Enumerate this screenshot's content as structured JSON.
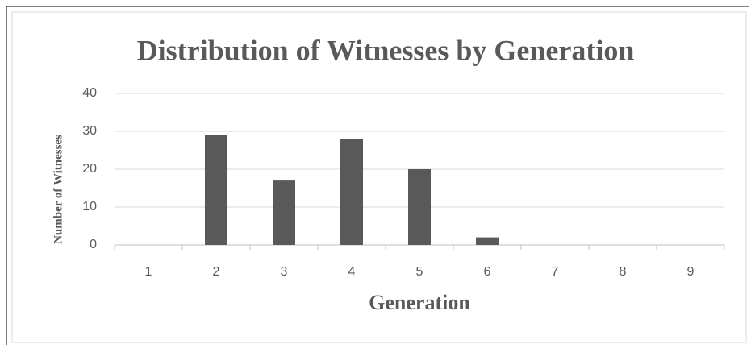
{
  "chart_data": {
    "type": "bar",
    "title": "Distribution of Witnesses by Generation",
    "x_label": "Generation",
    "y_label": "Number of Witnesses",
    "categories": [
      "1",
      "2",
      "3",
      "4",
      "5",
      "6",
      "7",
      "8",
      "9"
    ],
    "values": [
      0,
      29,
      17,
      28,
      20,
      2,
      0,
      0,
      0
    ],
    "color": "#595959",
    "ylim": [
      0,
      40
    ],
    "yticks": [
      0,
      10,
      20,
      30,
      40
    ],
    "grid": true
  }
}
